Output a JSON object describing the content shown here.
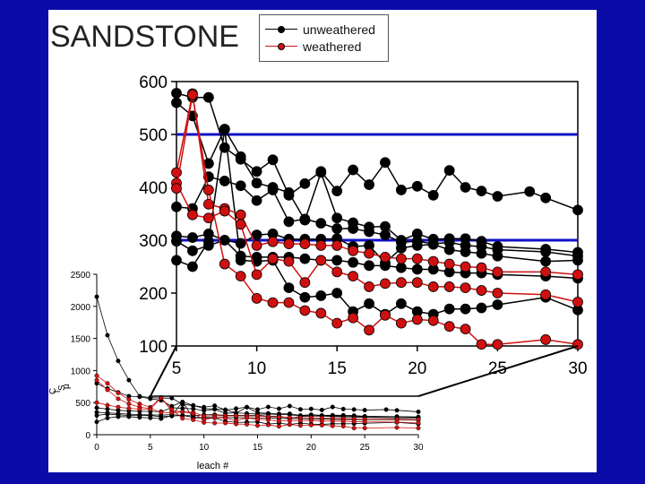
{
  "slide": {
    "title": "SANDSTONE"
  },
  "legend": {
    "items": [
      {
        "label": "unweathered",
        "color": "#000000"
      },
      {
        "label": "weathered",
        "color": "#d01010"
      }
    ]
  },
  "colors": {
    "background": "#0b0ba8",
    "reference_line": "#1010c8"
  },
  "chart_data": [
    {
      "type": "line",
      "title": "",
      "xlabel": "",
      "ylabel": "",
      "xlim": [
        5,
        30
      ],
      "ylim": [
        100,
        600
      ],
      "xticks": [
        5,
        10,
        15,
        20,
        25,
        30
      ],
      "yticks": [
        100,
        200,
        300,
        400,
        500,
        600
      ],
      "reference_lines": [
        500,
        300
      ],
      "connector_lines": true,
      "series": [
        {
          "group": "unweathered",
          "x": [
            5,
            6,
            7,
            8,
            9,
            10,
            11,
            12,
            13,
            14,
            15,
            16,
            17,
            18,
            19,
            20,
            21,
            22,
            23,
            24,
            25,
            27,
            28,
            30
          ],
          "y": [
            578,
            570,
            570,
            475,
            453,
            430,
            452,
            385,
            407,
            430,
            393,
            433,
            405,
            447,
            395,
            402,
            385,
            432,
            400,
            393,
            383,
            392,
            380,
            357
          ]
        },
        {
          "group": "unweathered",
          "x": [
            5,
            6,
            7,
            8,
            9,
            10,
            11,
            12,
            13,
            14,
            15,
            16,
            17,
            18,
            19,
            20,
            21,
            22,
            23,
            24,
            25,
            28,
            30
          ],
          "y": [
            560,
            535,
            445,
            510,
            458,
            408,
            400,
            390,
            338,
            428,
            342,
            333,
            325,
            326,
            300,
            312,
            302,
            303,
            303,
            298,
            288,
            283,
            277
          ]
        },
        {
          "group": "unweathered",
          "x": [
            5,
            6,
            7,
            8,
            9,
            10,
            11,
            12,
            13,
            14,
            15,
            16,
            17,
            18,
            19,
            20,
            21,
            22,
            23,
            24,
            25,
            28,
            30
          ],
          "y": [
            363,
            360,
            420,
            412,
            403,
            375,
            395,
            335,
            340,
            332,
            322,
            322,
            316,
            310,
            296,
            298,
            293,
            296,
            290,
            288,
            282,
            278,
            270
          ]
        },
        {
          "group": "unweathered",
          "x": [
            5,
            6,
            7,
            8,
            9,
            10,
            11,
            12,
            13,
            14,
            15,
            16,
            17,
            18,
            19,
            20,
            21,
            22,
            23,
            24,
            25,
            28,
            30
          ],
          "y": [
            308,
            305,
            312,
            300,
            294,
            310,
            312,
            302,
            302,
            302,
            303,
            288,
            290,
            257,
            285,
            290,
            292,
            282,
            278,
            275,
            270,
            260,
            262
          ]
        },
        {
          "group": "unweathered",
          "x": [
            5,
            6,
            7,
            8,
            9,
            10,
            11,
            12,
            13,
            14,
            15,
            16,
            17,
            18,
            19,
            20,
            21,
            22,
            23,
            24,
            25,
            28,
            30
          ],
          "y": [
            298,
            280,
            290,
            300,
            270,
            268,
            268,
            268,
            265,
            262,
            262,
            258,
            252,
            252,
            248,
            245,
            245,
            240,
            238,
            238,
            235,
            232,
            228
          ]
        },
        {
          "group": "unweathered",
          "x": [
            5,
            6,
            7,
            8,
            9,
            10,
            11,
            12,
            13,
            14,
            15,
            16,
            17,
            18,
            19,
            20,
            21,
            22,
            23,
            24,
            25,
            28,
            30
          ],
          "y": [
            262,
            250,
            298,
            510,
            262,
            260,
            262,
            210,
            192,
            195,
            200,
            165,
            180,
            160,
            180,
            165,
            160,
            170,
            170,
            172,
            178,
            192,
            168
          ]
        },
        {
          "group": "weathered",
          "x": [
            5,
            6,
            7,
            8,
            9,
            10,
            11,
            12,
            13,
            14,
            15,
            16,
            17,
            18,
            19,
            20,
            21,
            22,
            23,
            24,
            25,
            28,
            30
          ],
          "y": [
            428,
            577,
            368,
            360,
            348,
            290,
            297,
            293,
            293,
            290,
            290,
            280,
            275,
            268,
            265,
            265,
            260,
            255,
            250,
            248,
            240,
            240,
            235
          ]
        },
        {
          "group": "weathered",
          "x": [
            5,
            6,
            7,
            8,
            9,
            10,
            11,
            12,
            13,
            14,
            15,
            16,
            17,
            18,
            19,
            20,
            21,
            22,
            23,
            24,
            25,
            28,
            30
          ],
          "y": [
            408,
            348,
            342,
            355,
            330,
            235,
            265,
            260,
            220,
            262,
            240,
            232,
            212,
            218,
            220,
            220,
            212,
            212,
            210,
            205,
            200,
            197,
            183
          ]
        },
        {
          "group": "weathered",
          "x": [
            5,
            6,
            7,
            8,
            9,
            10,
            11,
            12,
            13,
            14,
            15,
            16,
            17,
            18,
            19,
            20,
            21,
            22,
            23,
            24,
            25,
            28,
            30
          ],
          "y": [
            398,
            575,
            395,
            255,
            232,
            190,
            182,
            182,
            167,
            162,
            143,
            153,
            130,
            158,
            143,
            150,
            148,
            137,
            132,
            103,
            103,
            112,
            103
          ]
        }
      ]
    },
    {
      "type": "line",
      "title": "",
      "xlabel": "leach #",
      "ylabel": "",
      "ylabel_fragments": [
        "C",
        "l",
        "S",
        "µ"
      ],
      "xlim": [
        0,
        30
      ],
      "ylim": [
        0,
        2500
      ],
      "xticks": [
        0,
        5,
        10,
        15,
        20,
        25,
        30
      ],
      "yticks": [
        0,
        500,
        1000,
        1500,
        2000,
        2500
      ],
      "series": [
        {
          "group": "unweathered",
          "x": [
            0,
            1,
            2,
            3,
            4,
            5,
            6,
            7,
            8,
            9,
            10,
            11,
            12,
            13,
            14,
            15,
            16,
            17,
            18,
            19,
            20,
            21,
            22,
            23,
            24,
            25,
            27,
            28,
            30
          ],
          "y": [
            2150,
            1550,
            1150,
            850,
            600,
            578,
            570,
            570,
            475,
            453,
            430,
            452,
            385,
            407,
            430,
            393,
            433,
            405,
            447,
            395,
            402,
            385,
            432,
            400,
            393,
            383,
            392,
            380,
            357
          ]
        },
        {
          "group": "unweathered",
          "x": [
            0,
            1,
            2,
            3,
            4,
            5,
            6,
            7,
            8,
            9,
            10,
            11,
            12,
            13,
            14,
            15,
            16,
            17,
            18,
            19,
            20,
            21,
            22,
            23,
            24,
            25,
            28,
            30
          ],
          "y": [
            800,
            720,
            660,
            600,
            590,
            560,
            535,
            445,
            510,
            458,
            408,
            400,
            390,
            338,
            428,
            342,
            333,
            325,
            326,
            300,
            312,
            302,
            303,
            303,
            298,
            288,
            283,
            277
          ]
        },
        {
          "group": "unweathered",
          "x": [
            0,
            1,
            2,
            3,
            4,
            5,
            6,
            7,
            8,
            9,
            10,
            11,
            12,
            13,
            14,
            15,
            16,
            17,
            18,
            19,
            20,
            21,
            22,
            23,
            24,
            25,
            28,
            30
          ],
          "y": [
            420,
            400,
            380,
            370,
            365,
            363,
            360,
            420,
            412,
            403,
            375,
            395,
            335,
            340,
            332,
            322,
            322,
            316,
            310,
            296,
            298,
            293,
            296,
            290,
            288,
            282,
            278,
            270
          ]
        },
        {
          "group": "unweathered",
          "x": [
            0,
            1,
            2,
            3,
            4,
            5,
            6,
            7,
            8,
            9,
            10,
            11,
            12,
            13,
            14,
            15,
            16,
            17,
            18,
            19,
            20,
            21,
            22,
            23,
            24,
            25,
            28,
            30
          ],
          "y": [
            350,
            340,
            330,
            320,
            312,
            308,
            305,
            312,
            300,
            294,
            310,
            312,
            302,
            302,
            302,
            303,
            288,
            290,
            257,
            285,
            290,
            292,
            282,
            278,
            275,
            270,
            260,
            262
          ]
        },
        {
          "group": "unweathered",
          "x": [
            0,
            1,
            2,
            3,
            4,
            5,
            6,
            7,
            8,
            9,
            10,
            11,
            12,
            13,
            14,
            15,
            16,
            17,
            18,
            19,
            20,
            21,
            22,
            23,
            24,
            25,
            28,
            30
          ],
          "y": [
            300,
            320,
            310,
            300,
            300,
            298,
            280,
            290,
            300,
            270,
            268,
            268,
            268,
            265,
            262,
            262,
            258,
            252,
            252,
            248,
            245,
            245,
            240,
            238,
            238,
            235,
            232,
            228
          ]
        },
        {
          "group": "unweathered",
          "x": [
            0,
            1,
            2,
            3,
            4,
            5,
            6,
            7,
            8,
            9,
            10,
            11,
            12,
            13,
            14,
            15,
            16,
            17,
            18,
            19,
            20,
            21,
            22,
            23,
            24,
            25,
            28,
            30
          ],
          "y": [
            200,
            260,
            280,
            280,
            270,
            262,
            250,
            298,
            510,
            262,
            260,
            262,
            210,
            192,
            195,
            200,
            165,
            180,
            160,
            180,
            165,
            160,
            170,
            170,
            172,
            178,
            192,
            168
          ]
        },
        {
          "group": "weathered",
          "x": [
            0,
            1,
            2,
            3,
            4,
            5,
            6,
            7,
            8,
            9,
            10,
            11,
            12,
            13,
            14,
            15,
            16,
            17,
            18,
            19,
            20,
            21,
            22,
            23,
            24,
            25,
            28,
            30
          ],
          "y": [
            920,
            800,
            650,
            550,
            480,
            428,
            577,
            368,
            360,
            348,
            290,
            297,
            293,
            293,
            290,
            290,
            280,
            275,
            268,
            265,
            265,
            260,
            255,
            250,
            248,
            240,
            240,
            235
          ]
        },
        {
          "group": "weathered",
          "x": [
            0,
            1,
            2,
            3,
            4,
            5,
            6,
            7,
            8,
            9,
            10,
            11,
            12,
            13,
            14,
            15,
            16,
            17,
            18,
            19,
            20,
            21,
            22,
            23,
            24,
            25,
            28,
            30
          ],
          "y": [
            850,
            700,
            560,
            480,
            430,
            408,
            348,
            342,
            355,
            330,
            235,
            265,
            260,
            220,
            262,
            240,
            232,
            212,
            218,
            220,
            220,
            212,
            212,
            210,
            205,
            200,
            197,
            183
          ]
        },
        {
          "group": "weathered",
          "x": [
            0,
            1,
            2,
            3,
            4,
            5,
            6,
            7,
            8,
            9,
            10,
            11,
            12,
            13,
            14,
            15,
            16,
            17,
            18,
            19,
            20,
            21,
            22,
            23,
            24,
            25,
            28,
            30
          ],
          "y": [
            500,
            460,
            430,
            410,
            400,
            398,
            575,
            395,
            255,
            232,
            190,
            182,
            182,
            167,
            162,
            143,
            153,
            130,
            158,
            143,
            150,
            148,
            137,
            132,
            103,
            103,
            112,
            103
          ]
        }
      ]
    }
  ]
}
